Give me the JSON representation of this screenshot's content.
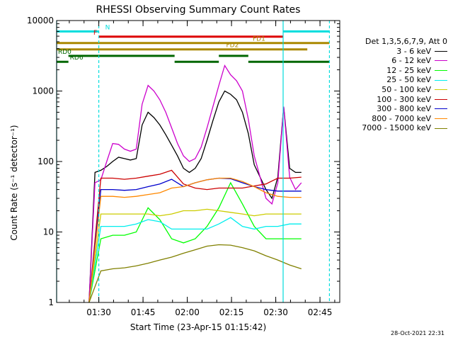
{
  "chart_data": {
    "type": "line",
    "title": "RHESSI Observing Summary Count Rates",
    "xlabel": "Start Time (23-Apr-15 01:15:42)",
    "ylabel": "Count Rate (s⁻¹ detector⁻¹)",
    "yscale": "log",
    "ylim": [
      1,
      10000
    ],
    "xlim_minutes": [
      0,
      96
    ],
    "y_ticks": [
      "1",
      "10",
      "100",
      "1000",
      "10000"
    ],
    "x_ticks": [
      {
        "label": "01:30",
        "t": 14.3
      },
      {
        "label": "01:45",
        "t": 29.3
      },
      {
        "label": "02:00",
        "t": 44.3
      },
      {
        "label": "02:15",
        "t": 59.3
      },
      {
        "label": "02:30",
        "t": 74.3
      },
      {
        "label": "02:45",
        "t": 89.3
      }
    ],
    "legend_title": "Det 1,3,5,6,7,9, Att 0",
    "series": [
      {
        "name": "3 - 6 keV",
        "color": "#000000",
        "x": [
          11,
          13,
          15,
          17,
          19,
          21,
          23,
          25,
          27,
          29,
          31,
          33,
          35,
          37,
          39,
          41,
          43,
          45,
          47,
          49,
          51,
          53,
          55,
          57,
          59,
          61,
          63,
          65,
          67,
          69,
          71,
          73,
          75,
          77,
          79,
          81,
          83
        ],
        "y": [
          1,
          70,
          75,
          85,
          100,
          115,
          110,
          105,
          110,
          330,
          500,
          420,
          330,
          240,
          170,
          120,
          80,
          70,
          80,
          110,
          200,
          380,
          700,
          1000,
          900,
          750,
          500,
          250,
          90,
          60,
          40,
          30,
          60,
          600,
          80,
          70,
          70
        ]
      },
      {
        "name": "6 - 12 keV",
        "color": "#cc00cc",
        "x": [
          11,
          13,
          15,
          17,
          19,
          21,
          23,
          25,
          27,
          29,
          31,
          33,
          35,
          37,
          39,
          41,
          43,
          45,
          47,
          49,
          51,
          53,
          55,
          57,
          59,
          61,
          63,
          65,
          67,
          69,
          71,
          73,
          75,
          77,
          79,
          81,
          83
        ],
        "y": [
          1,
          50,
          55,
          100,
          180,
          175,
          150,
          140,
          150,
          650,
          1200,
          1000,
          750,
          500,
          300,
          180,
          120,
          100,
          110,
          160,
          300,
          600,
          1200,
          2300,
          1700,
          1400,
          1000,
          400,
          120,
          60,
          30,
          25,
          50,
          600,
          60,
          40,
          50
        ]
      },
      {
        "name": "12 - 25 keV",
        "color": "#00ff00",
        "x": [
          11,
          15,
          19,
          23,
          27,
          31,
          35,
          39,
          43,
          47,
          51,
          55,
          59,
          63,
          67,
          71,
          75,
          79,
          83
        ],
        "y": [
          1,
          8,
          9,
          9,
          10,
          22,
          15,
          8,
          7,
          8,
          12,
          22,
          50,
          25,
          12,
          8,
          8,
          8,
          8
        ]
      },
      {
        "name": "25 - 50 keV",
        "color": "#00eeee",
        "x": [
          11,
          15,
          19,
          23,
          27,
          31,
          35,
          39,
          43,
          47,
          51,
          55,
          59,
          63,
          67,
          71,
          75,
          79,
          83
        ],
        "y": [
          1,
          12,
          12,
          12,
          13,
          15,
          14,
          11,
          11,
          11,
          11,
          13,
          16,
          12,
          11,
          12,
          12,
          13,
          13
        ]
      },
      {
        "name": "50 - 100 keV",
        "color": "#cccc00",
        "x": [
          11,
          15,
          19,
          23,
          27,
          31,
          35,
          39,
          43,
          47,
          51,
          55,
          59,
          63,
          67,
          71,
          75,
          79,
          83
        ],
        "y": [
          1,
          18,
          18,
          18,
          18,
          18,
          17,
          18,
          20,
          20,
          21,
          20,
          19,
          18,
          17,
          18,
          18,
          18,
          18
        ]
      },
      {
        "name": "100 - 300 keV",
        "color": "#cc0000",
        "x": [
          11,
          15,
          19,
          23,
          27,
          31,
          35,
          39,
          43,
          47,
          51,
          55,
          59,
          63,
          67,
          71,
          75,
          79,
          83
        ],
        "y": [
          1,
          58,
          58,
          56,
          58,
          62,
          66,
          75,
          48,
          42,
          40,
          42,
          42,
          42,
          45,
          48,
          58,
          58,
          60
        ]
      },
      {
        "name": "300 - 800 keV",
        "color": "#0000cc",
        "x": [
          11,
          15,
          19,
          23,
          27,
          31,
          35,
          39,
          43,
          47,
          51,
          55,
          59,
          63,
          67,
          71,
          75,
          79,
          83
        ],
        "y": [
          1,
          40,
          40,
          39,
          40,
          44,
          48,
          56,
          44,
          50,
          55,
          58,
          57,
          50,
          44,
          40,
          38,
          38,
          38
        ]
      },
      {
        "name": "800 - 7000 keV",
        "color": "#ff8800",
        "x": [
          11,
          15,
          19,
          23,
          27,
          31,
          35,
          39,
          43,
          47,
          51,
          55,
          59,
          63,
          67,
          71,
          75,
          79,
          83
        ],
        "y": [
          1,
          32,
          32,
          31,
          32,
          34,
          36,
          42,
          44,
          50,
          55,
          58,
          58,
          52,
          44,
          36,
          32,
          31,
          31
        ]
      },
      {
        "name": "7000 - 15000 keV",
        "color": "#808000",
        "x": [
          11,
          15,
          19,
          23,
          27,
          31,
          35,
          39,
          43,
          47,
          51,
          55,
          59,
          63,
          67,
          71,
          75,
          79,
          83
        ],
        "y": [
          1,
          2.8,
          3,
          3.1,
          3.3,
          3.6,
          4,
          4.4,
          5,
          5.6,
          6.3,
          6.6,
          6.5,
          6,
          5.4,
          4.6,
          4,
          3.4,
          3
        ]
      }
    ],
    "flags": [
      {
        "name": "N",
        "color": "#00dddd",
        "segments": [
          [
            0,
            14.3
          ],
          [
            76.8,
            92.5
          ]
        ],
        "level": 7000,
        "label_t": 16
      },
      {
        "name": "F",
        "color": "#dd0000",
        "segments": [
          [
            14.3,
            76.8
          ]
        ],
        "level": 5900,
        "label_t": 12
      },
      {
        "name": "FD1",
        "color": "#aa8800",
        "segments": [
          [
            0,
            92.5
          ]
        ],
        "level": 4800,
        "label_t": 66
      },
      {
        "name": "FD2",
        "color": "#aa8800",
        "segments": [
          [
            0,
            85
          ]
        ],
        "level": 3900,
        "label_t": 57
      },
      {
        "name": "RD0",
        "color": "#006600",
        "segments": [
          [
            4,
            40
          ],
          [
            55,
            65
          ]
        ],
        "level": 3150,
        "label_t": 0
      },
      {
        "name": "RD6",
        "color": "#006600",
        "segments": [
          [
            0,
            4
          ],
          [
            40,
            55
          ],
          [
            65,
            92.5
          ]
        ],
        "level": 2600,
        "label_t": 4
      }
    ],
    "vlines": [
      {
        "t": 14.3,
        "color": "#00dddd",
        "style": "dashed"
      },
      {
        "t": 76.8,
        "color": "#00dddd",
        "style": "solid"
      },
      {
        "t": 92.5,
        "color": "#00dddd",
        "style": "dashed"
      },
      {
        "t": 0,
        "color": "#00dddd",
        "style": "solid"
      }
    ]
  },
  "footer": {
    "date": "28-Oct-2021 22:31"
  }
}
